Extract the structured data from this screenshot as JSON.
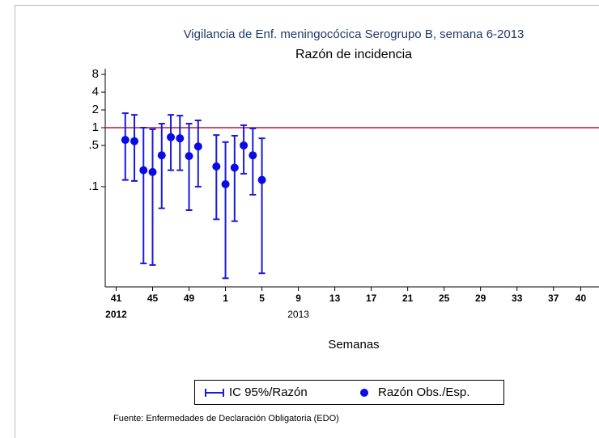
{
  "chart_data": {
    "type": "errorbar",
    "title": "Vigilancia de Enf. meningocócica Serogrupo B, semana 6-2013",
    "subtitle": "Razón de incidencia",
    "x_label": "Semanas",
    "source": "Fuente: Enfermedades de Declaración Obligatoria (EDO)",
    "log_y": true,
    "ylim": [
      0.002,
      10
    ],
    "yticks": [
      8,
      4,
      2,
      1,
      {
        "value": 0.5,
        "label": ".5"
      },
      {
        "value": 0.1,
        "label": ".1"
      }
    ],
    "xlim": [
      -1.2,
      53
    ],
    "xticks": [
      {
        "value": 0,
        "label": "41"
      },
      {
        "value": 4,
        "label": "45"
      },
      {
        "value": 8,
        "label": "49"
      },
      {
        "value": 12,
        "label": "1"
      },
      {
        "value": 16,
        "label": "5"
      },
      {
        "value": 20,
        "label": "9"
      },
      {
        "value": 24,
        "label": "13"
      },
      {
        "value": 28,
        "label": "17"
      },
      {
        "value": 32,
        "label": "21"
      },
      {
        "value": 36,
        "label": "25"
      },
      {
        "value": 40,
        "label": "29"
      },
      {
        "value": 44,
        "label": "33"
      },
      {
        "value": 48,
        "label": "37"
      },
      {
        "value": 51,
        "label": "40"
      }
    ],
    "year_labels": [
      {
        "value": 0,
        "label": "2012"
      },
      {
        "value": 20,
        "label": "2013"
      }
    ],
    "reference_line": {
      "value": 1,
      "color": "#c0103a"
    },
    "x": [
      1,
      2,
      3,
      4,
      5,
      6,
      7,
      8,
      9,
      10,
      11,
      12,
      13,
      14,
      15,
      16
    ],
    "series": [
      {
        "name": "IC 95%/Razón",
        "color": "#1a1adb",
        "low": [
          0.13,
          0.125,
          0.005,
          0.0047,
          0.043,
          0.19,
          0.19,
          0.04,
          0.1,
          null,
          0.028,
          0.0028,
          0.026,
          0.166,
          0.073,
          0.0034
        ],
        "high": [
          1.76,
          1.65,
          1.0,
          0.94,
          1.17,
          1.65,
          1.6,
          1.17,
          1.33,
          null,
          0.75,
          0.57,
          0.73,
          1.1,
          0.97,
          0.66
        ]
      },
      {
        "name": "Razón Obs./Esp.",
        "color": "#0a0ae6",
        "values": [
          0.62,
          0.59,
          0.19,
          0.177,
          0.34,
          0.69,
          0.66,
          0.33,
          0.48,
          null,
          0.22,
          0.11,
          0.21,
          0.5,
          0.34,
          0.13
        ]
      }
    ]
  }
}
